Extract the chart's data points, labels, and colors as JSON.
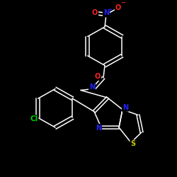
{
  "background_color": "#000000",
  "bond_color": "#ffffff",
  "atom_colors": {
    "O": "#ff2222",
    "N": "#2222ff",
    "S": "#cccc00",
    "Cl": "#00cc00",
    "C": "#ffffff"
  },
  "figsize": [
    2.5,
    2.5
  ],
  "dpi": 100
}
